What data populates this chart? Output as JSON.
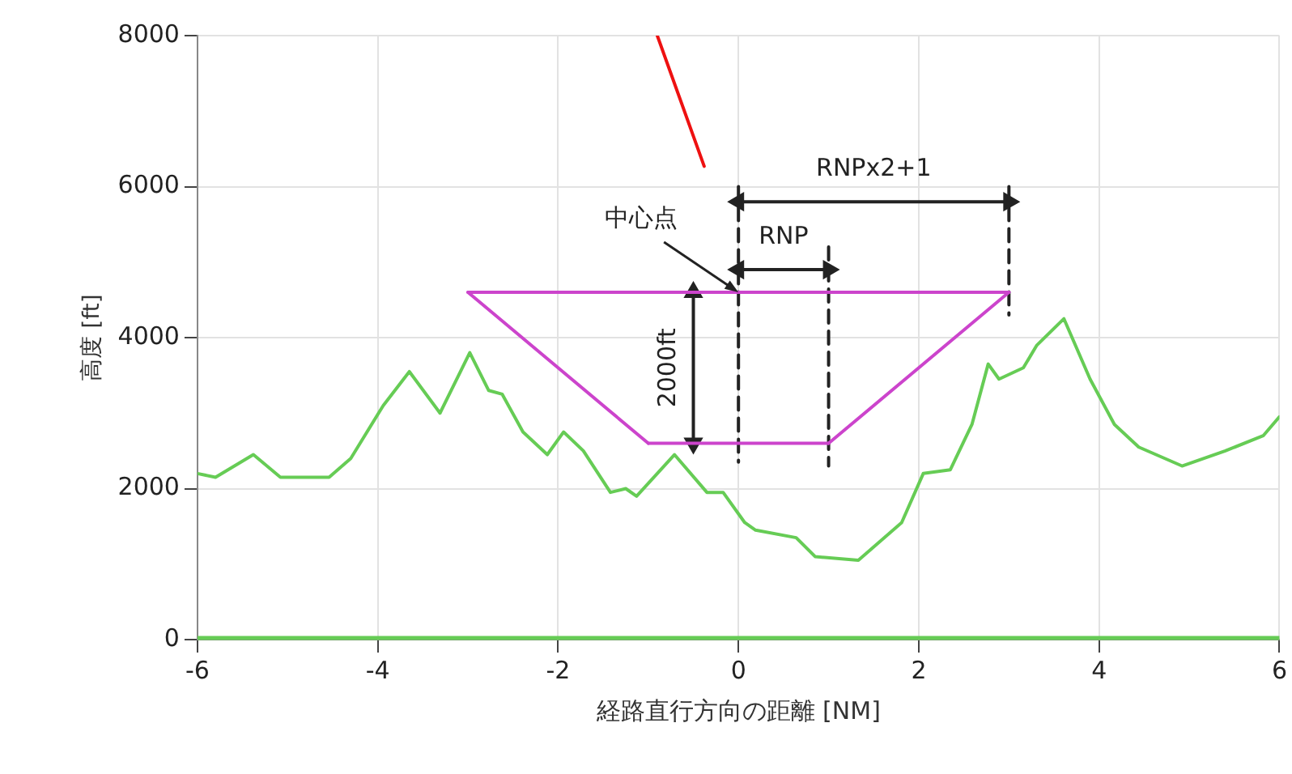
{
  "chart_data": {
    "type": "line",
    "xlabel": "経路直行方向の距離 [NM]",
    "ylabel": "高度 [ft]",
    "xlim": [
      -6,
      6
    ],
    "xticks": [
      -6,
      -4,
      -2,
      0,
      2,
      4,
      6
    ],
    "ylim": [
      0,
      8000
    ],
    "yticks": [
      0,
      2000,
      4000,
      6000,
      8000
    ],
    "grid": true,
    "legend": false,
    "series": [
      {
        "color": "#66cc55",
        "x": [
          -6,
          -5.8,
          -5.38,
          -5.08,
          -4.54,
          -4.3,
          -3.94,
          -3.65,
          -3.31,
          -2.98,
          -2.77,
          -2.62,
          -2.39,
          -2.12,
          -1.94,
          -1.72,
          -1.42,
          -1.25,
          -1.13,
          -0.71,
          -0.35,
          -0.17,
          0.07,
          0.19,
          0.64,
          0.85,
          1.33,
          1.81,
          2.05,
          2.35,
          2.59,
          2.77,
          2.89,
          3.16,
          3.31,
          3.61,
          3.9,
          4.17,
          4.44,
          4.92,
          5.4,
          5.82,
          6
        ],
        "values": [
          2200,
          2150,
          2450,
          2150,
          2150,
          2400,
          3100,
          3550,
          3000,
          3800,
          3300,
          3250,
          2750,
          2450,
          2750,
          2500,
          1950,
          2000,
          1900,
          2450,
          1950,
          1950,
          1550,
          1450,
          1350,
          1100,
          1050,
          1550,
          2200,
          2250,
          2850,
          3650,
          3450,
          3600,
          3900,
          4250,
          3450,
          2850,
          2550,
          2300,
          2500,
          2700,
          2950
        ]
      },
      {
        "color": "#cc44cc",
        "x": [
          -3,
          3
        ],
        "values": [
          4600,
          4600
        ]
      },
      {
        "color": "#cc44cc",
        "x": [
          -1,
          1
        ],
        "values": [
          2600,
          2600
        ]
      },
      {
        "color": "#cc44cc",
        "x": [
          -3,
          -1
        ],
        "values": [
          4600,
          2600
        ]
      },
      {
        "color": "#cc44cc",
        "x": [
          1,
          3
        ],
        "values": [
          2600,
          4600
        ]
      },
      {
        "color": "#222222",
        "line_style": "dashed",
        "x": [
          0,
          0
        ],
        "values": [
          6000,
          2350
        ]
      },
      {
        "color": "#222222",
        "line_style": "dashed",
        "x": [
          1,
          1
        ],
        "values": [
          5200,
          2300
        ]
      },
      {
        "color": "#222222",
        "line_style": "dashed",
        "x": [
          3,
          3
        ],
        "values": [
          6000,
          4300
        ]
      },
      {
        "color": "#222222",
        "marker": "triangle",
        "x": [
          0,
          3
        ],
        "values": [
          5800,
          5800
        ]
      },
      {
        "color": "#222222",
        "marker": "triangle",
        "x": [
          0,
          1
        ],
        "values": [
          4900,
          4900
        ]
      },
      {
        "color": "#222222",
        "marker": "triangle",
        "x": [
          -0.5,
          -0.5
        ],
        "values": [
          4600,
          2600
        ]
      },
      {
        "color": "#ee1111",
        "x": [
          -0.38,
          -0.9
        ],
        "values": [
          6270,
          8000
        ]
      }
    ],
    "ref_lines": [
      {
        "axis": "y",
        "value": 0,
        "color": "#66cc55"
      }
    ],
    "annotations": [
      {
        "text": "RNPx2+1",
        "x": 1.5,
        "y": 5800
      },
      {
        "text": "RNP",
        "x": 0.5,
        "y": 4900
      },
      {
        "text": "2000ft",
        "x": -0.5,
        "y": 3600
      },
      {
        "text": "中心点",
        "x": 0,
        "y": 4600
      }
    ]
  }
}
